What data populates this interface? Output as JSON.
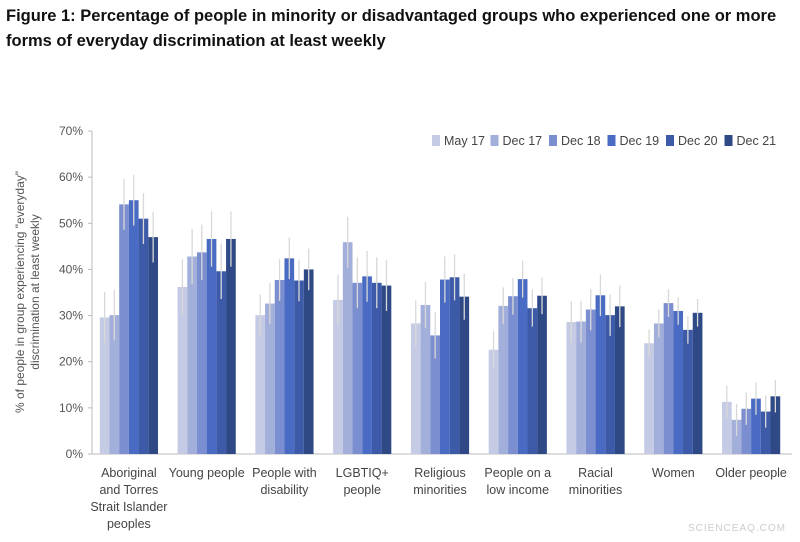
{
  "title": "Figure 1: Percentage of people in minority or disadvantaged groups who experienced one or more forms of everyday discrimination at least weekly",
  "watermark": "SCIENCEAQ.COM",
  "chart_data": {
    "type": "bar",
    "title": "Figure 1: Percentage of people in minority or disadvantaged groups who experienced one or more forms of everyday discrimination at least weekly",
    "ylabel": "% of people in group experiencing \"everyday\" discrimination at least weekly",
    "ylabel_lines": [
      "% of people in group experiencing \"everyday\"",
      "discrimination at least weekly"
    ],
    "xlabel": "",
    "ylim": [
      0,
      70
    ],
    "yticks": [
      "0%",
      "10%",
      "20%",
      "30%",
      "40%",
      "50%",
      "60%",
      "70%"
    ],
    "legend_position": "top-right",
    "grid": false,
    "categories": [
      [
        "Aboriginal",
        "and Torres",
        "Strait Islander",
        "peoples"
      ],
      [
        "Young people"
      ],
      [
        "People with",
        "disability"
      ],
      [
        "LGBTIQ+",
        "people"
      ],
      [
        "Religious",
        "minorities"
      ],
      [
        "People on a",
        "low income"
      ],
      [
        "Racial",
        "minorities"
      ],
      [
        "Women"
      ],
      [
        "Older people"
      ]
    ],
    "series": [
      {
        "name": "May 17",
        "color": "#c6cbe5",
        "values": [
          29.6,
          36.2,
          30.1,
          33.4,
          28.3,
          22.6,
          28.6,
          24.0,
          11.3
        ]
      },
      {
        "name": "Dec 17",
        "color": "#a3afdb",
        "values": [
          30.1,
          42.8,
          32.6,
          45.9,
          32.3,
          32.1,
          28.7,
          28.3,
          7.4
        ]
      },
      {
        "name": "Dec 18",
        "color": "#7b8ed0",
        "values": [
          54.1,
          43.7,
          37.7,
          37.1,
          25.7,
          34.2,
          31.3,
          32.7,
          9.8
        ]
      },
      {
        "name": "Dec 19",
        "color": "#4a6bc3",
        "values": [
          55.0,
          46.6,
          42.4,
          38.5,
          37.8,
          37.9,
          34.4,
          31.0,
          12.0
        ]
      },
      {
        "name": "Dec 20",
        "color": "#3c5aa8",
        "values": [
          51.0,
          39.6,
          37.6,
          37.1,
          38.3,
          31.6,
          30.1,
          26.9,
          9.2
        ]
      },
      {
        "name": "Dec 21",
        "color": "#2f4987",
        "values": [
          47.0,
          46.6,
          40.0,
          36.5,
          34.1,
          34.3,
          32.0,
          30.6,
          12.5
        ]
      }
    ],
    "error_margin": [
      5.5,
      6,
      4.5,
      5.5,
      5,
      4,
      4.5,
      3,
      3.5
    ]
  }
}
